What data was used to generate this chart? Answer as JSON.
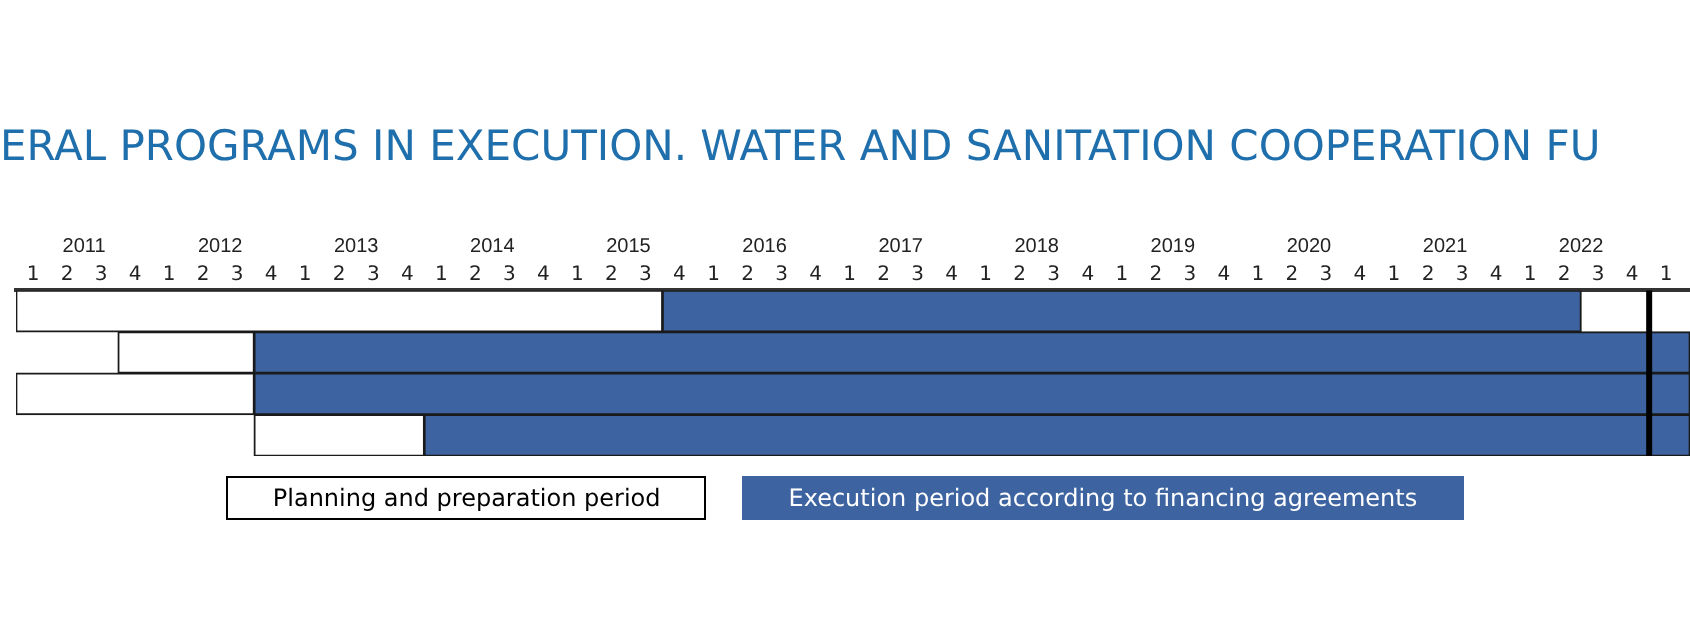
{
  "chart_data": {
    "type": "bar",
    "orientation": "horizontal",
    "title": "ERAL PROGRAMS IN EXECUTION. WATER AND SANITATION COOPERATION FU",
    "categories": [
      null,
      null,
      null,
      null
    ],
    "series": [
      {
        "name": "Planning and preparation period",
        "color": "#ffffff",
        "base": [
          2010.5,
          2011.25,
          2010.5,
          2012.25
        ],
        "values": [
          4.75,
          1,
          1.75,
          1.25
        ]
      },
      {
        "name": "Execution period according to financing agreements",
        "color": "#3d64a0",
        "base": [
          2015.25,
          2012.25,
          2012.25,
          2013.5
        ],
        "values": [
          6.75,
          10.55,
          10.55,
          9.3
        ]
      }
    ],
    "xlim": [
      2010.5,
      2022.8
    ],
    "xticks": [
      2011,
      2012,
      2013,
      2014,
      2015,
      2016,
      2017,
      2018,
      2019,
      2020,
      2021,
      2022
    ],
    "annotations": [
      "1",
      "2",
      "3",
      "4",
      "1",
      "2",
      "3",
      "4",
      "1",
      "2",
      "3",
      "4",
      "1",
      "2",
      "3",
      "4",
      "1",
      "2",
      "3",
      "4",
      "1",
      "2",
      "3",
      "4",
      "1",
      "2",
      "3",
      "4",
      "1",
      "2",
      "3",
      "4",
      "1",
      "2",
      "3",
      "4",
      "1",
      "2",
      "3",
      "4",
      "1",
      "2",
      "3",
      "4",
      "1",
      "2",
      "3",
      "4",
      "1"
    ],
    "ref_lines": [
      {
        "axis": "x",
        "value": 2022.5,
        "color": "#000000"
      }
    ],
    "grid": false,
    "legend": "bottom"
  }
}
